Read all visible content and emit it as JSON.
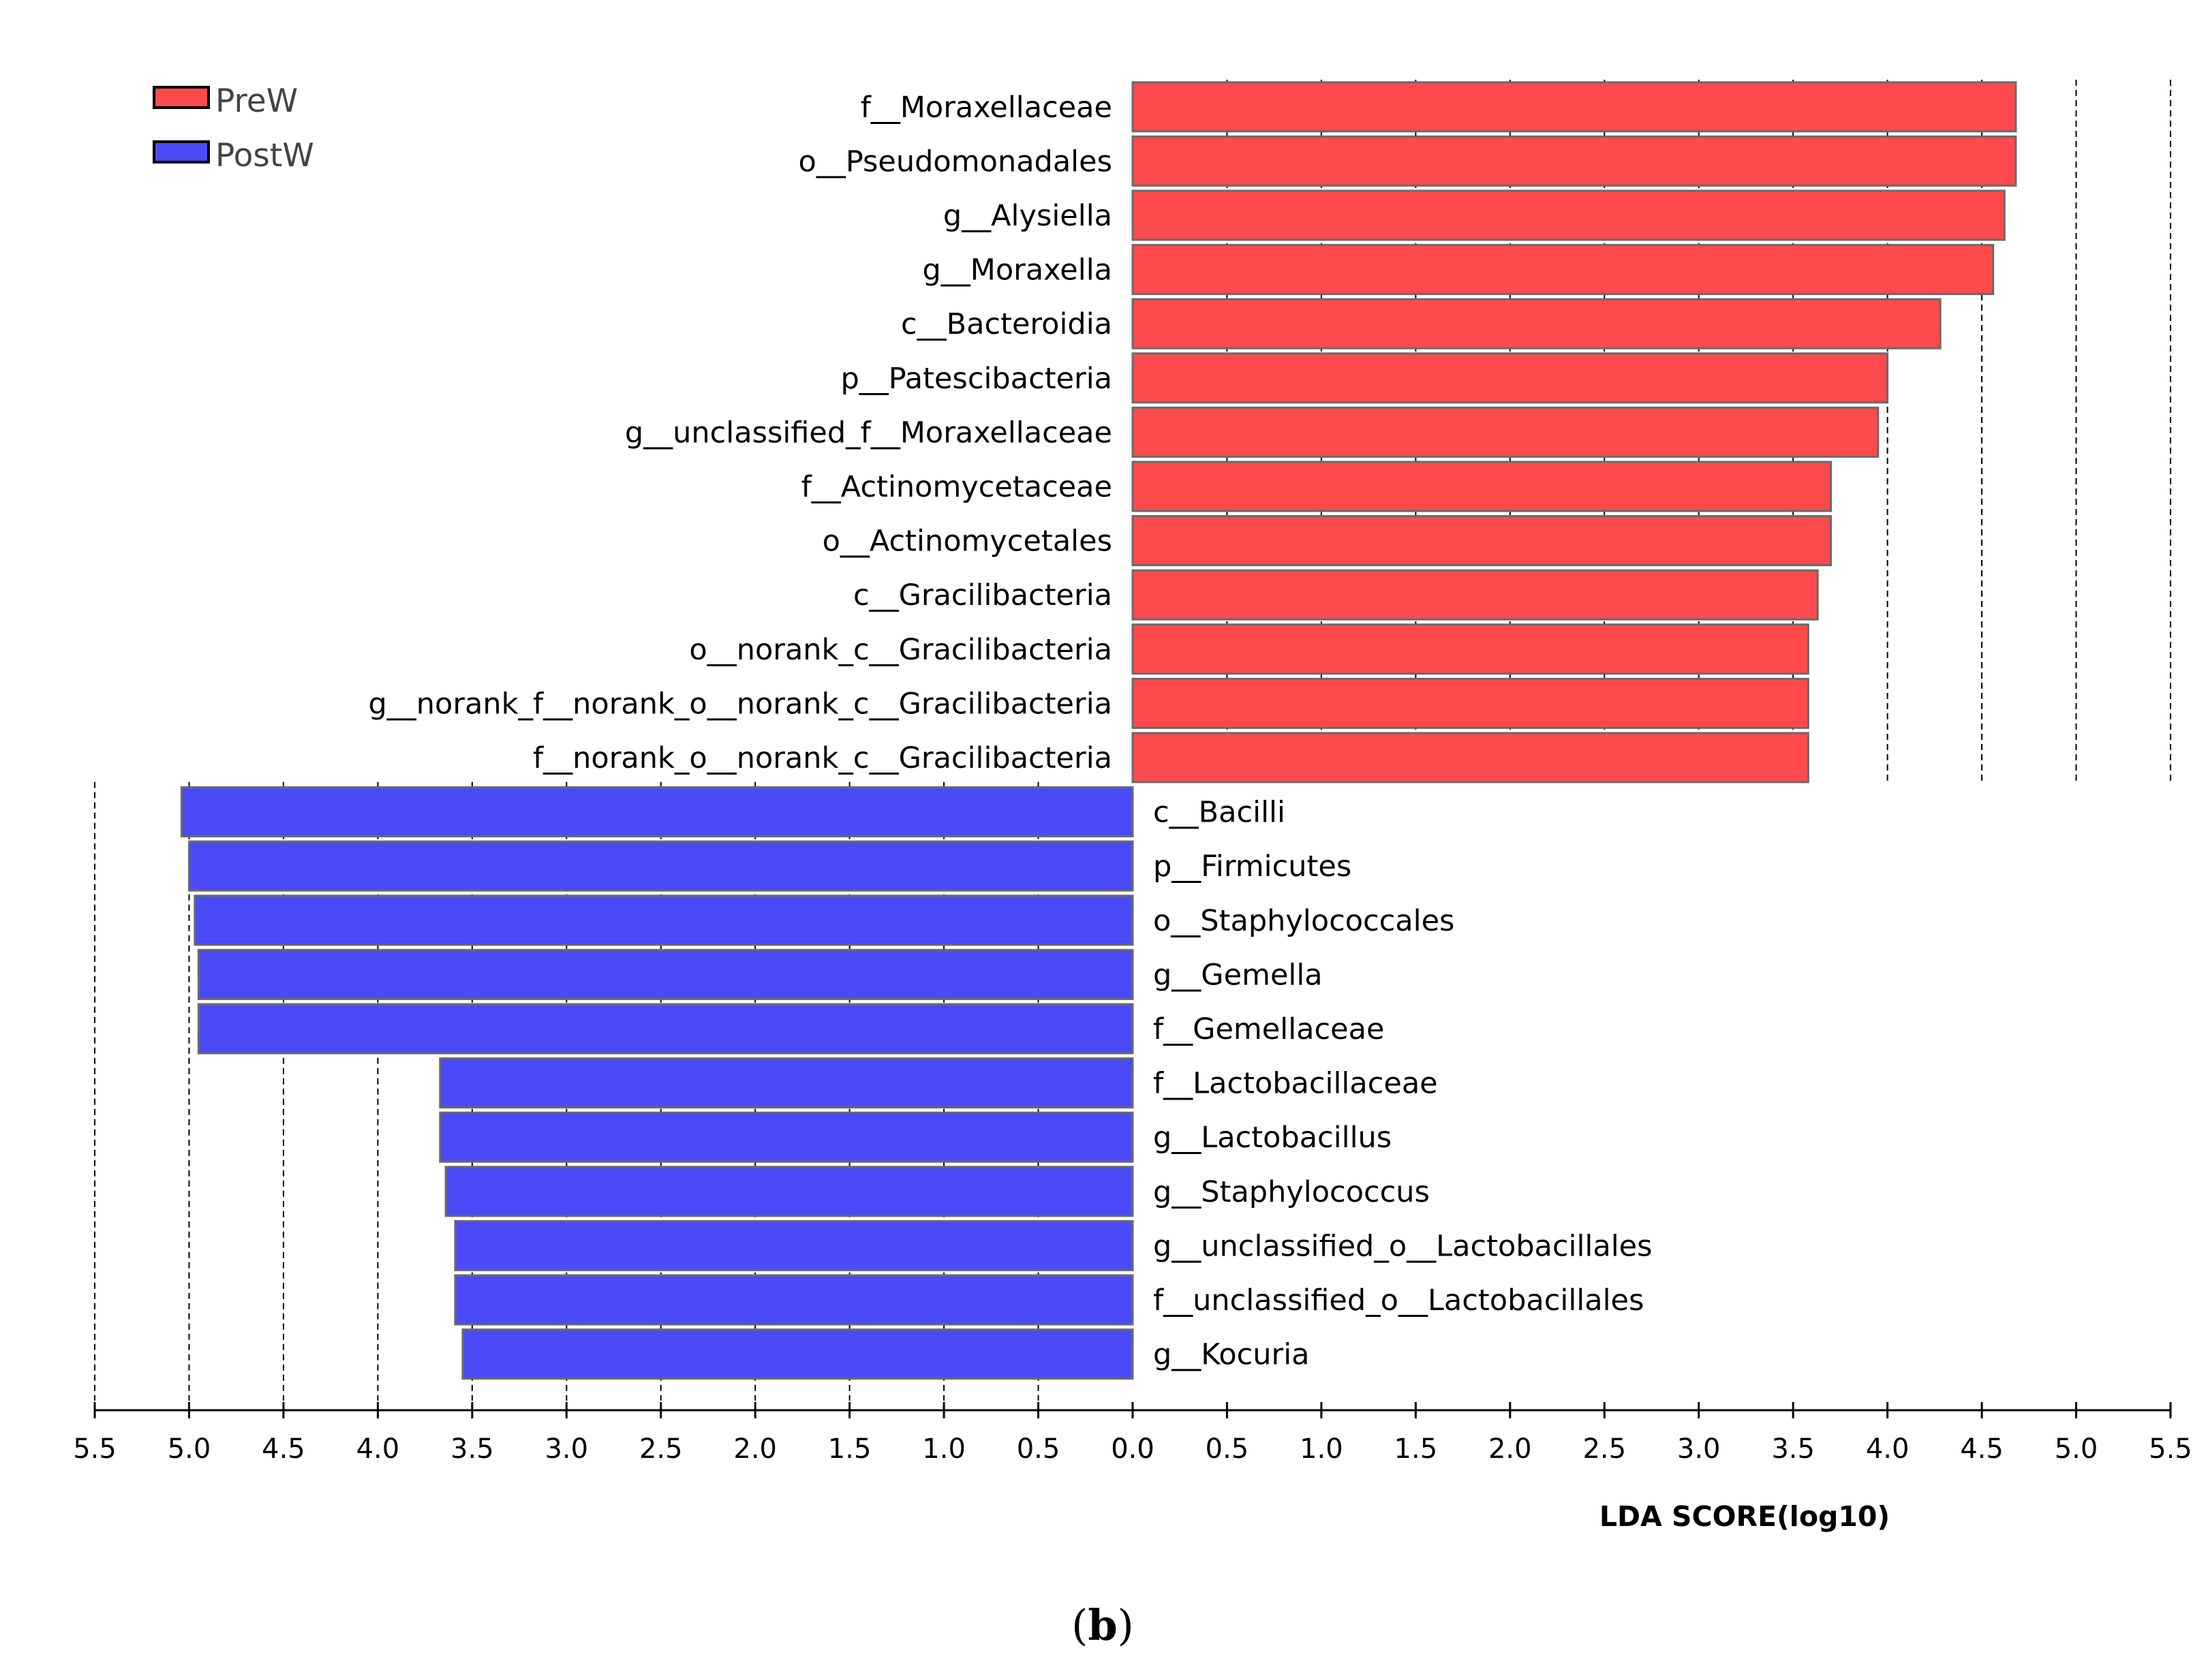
{
  "chart_data": {
    "type": "bar",
    "orientation": "horizontal-diverging",
    "xlabel": "LDA SCORE(log10)",
    "caption_prefix": "(",
    "caption_letter": "b",
    "caption_suffix": ")",
    "xlim": [
      0,
      5.5
    ],
    "ticks": [
      0.0,
      0.5,
      1.0,
      1.5,
      2.0,
      2.5,
      3.0,
      3.5,
      4.0,
      4.5,
      5.0,
      5.5
    ],
    "left_tick_labels": [
      "5.5",
      "5.0",
      "4.5",
      "4.0",
      "3.5",
      "3.0",
      "2.5",
      "2.0",
      "1.5",
      "1.0",
      "0.5",
      "0.0"
    ],
    "right_tick_labels": [
      "0.0",
      "0.5",
      "1.0",
      "1.5",
      "2.0",
      "2.5",
      "3.0",
      "3.5",
      "4.0",
      "4.5",
      "5.0",
      "5.5"
    ],
    "legend": [
      {
        "name": "PreW",
        "color": "#ff4a4d"
      },
      {
        "name": "PostW",
        "color": "#4a4af7"
      }
    ],
    "series": [
      {
        "name": "PreW",
        "color": "#ff4a4d",
        "direction": "right",
        "categories": [
          "f__Moraxellaceae",
          "o__Pseudomonadales",
          "g__Alysiella",
          "g__Moraxella",
          "c__Bacteroidia",
          "p__Patescibacteria",
          "g__unclassified_f__Moraxellaceae",
          "f__Actinomycetaceae",
          "o__Actinomycetales",
          "c__Gracilibacteria",
          "o__norank_c__Gracilibacteria",
          "g__norank_f__norank_o__norank_c__Gracilibacteria",
          "f__norank_o__norank_c__Gracilibacteria"
        ],
        "values": [
          4.68,
          4.68,
          4.62,
          4.56,
          4.28,
          4.0,
          3.95,
          3.7,
          3.7,
          3.63,
          3.58,
          3.58,
          3.58
        ]
      },
      {
        "name": "PostW",
        "color": "#4a4af7",
        "direction": "left",
        "categories": [
          "c__Bacilli",
          "p__Firmicutes",
          "o__Staphylococcales",
          "g__Gemella",
          "f__Gemellaceae",
          "f__Lactobacillaceae",
          "g__Lactobacillus",
          "g__Staphylococcus",
          "g__unclassified_o__Lactobacillales",
          "f__unclassified_o__Lactobacillales",
          "g__Kocuria"
        ],
        "values": [
          5.04,
          5.0,
          4.97,
          4.95,
          4.95,
          3.67,
          3.67,
          3.64,
          3.59,
          3.59,
          3.55
        ]
      }
    ]
  }
}
